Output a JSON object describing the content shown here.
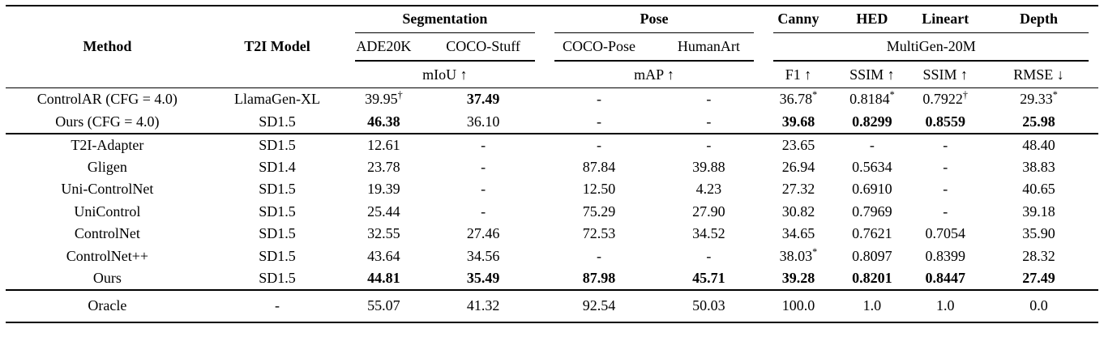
{
  "colors": {
    "text": "#000000",
    "background": "#ffffff",
    "rule": "#000000"
  },
  "table": {
    "header": {
      "method": "Method",
      "t2i_model": "T2I Model",
      "groups": [
        {
          "label": "Segmentation",
          "cols": [
            "ADE20K",
            "COCO-Stuff"
          ],
          "metric": "mIoU ↑"
        },
        {
          "label": "Pose",
          "cols": [
            "COCO-Pose",
            "HumanArt"
          ],
          "metric": "mAP ↑"
        }
      ],
      "multigen": {
        "dataset": "MultiGen-20M",
        "cols": [
          {
            "label": "Canny",
            "metric": "F1 ↑"
          },
          {
            "label": "HED",
            "metric": "SSIM ↑"
          },
          {
            "label": "Lineart",
            "metric": "SSIM ↑"
          },
          {
            "label": "Depth",
            "metric": "RMSE ↓"
          }
        ]
      }
    },
    "groups": [
      {
        "rows": [
          {
            "method": "ControlAR (CFG = 4.0)",
            "t2i": "LlamaGen-XL",
            "cells": [
              {
                "t": "39.95",
                "sup": "†"
              },
              {
                "t": "37.49",
                "b": true
              },
              "-",
              "-",
              {
                "t": "36.78",
                "sup": "*"
              },
              {
                "t": "0.8184",
                "sup": "*"
              },
              {
                "t": "0.7922",
                "sup": "†"
              },
              {
                "t": "29.33",
                "sup": "*"
              }
            ]
          },
          {
            "method": "Ours (CFG = 4.0)",
            "t2i": "SD1.5",
            "cells": [
              {
                "t": "46.38",
                "b": true
              },
              "36.10",
              "-",
              "-",
              {
                "t": "39.68",
                "b": true
              },
              {
                "t": "0.8299",
                "b": true
              },
              {
                "t": "0.8559",
                "b": true
              },
              {
                "t": "25.98",
                "b": true
              }
            ]
          }
        ]
      },
      {
        "rows": [
          {
            "method": "T2I-Adapter",
            "t2i": "SD1.5",
            "cells": [
              "12.61",
              "-",
              "-",
              "-",
              "23.65",
              "-",
              "-",
              "48.40"
            ]
          },
          {
            "method": "Gligen",
            "t2i": "SD1.4",
            "cells": [
              "23.78",
              "-",
              "87.84",
              "39.88",
              "26.94",
              "0.5634",
              "-",
              "38.83"
            ]
          },
          {
            "method": "Uni-ControlNet",
            "t2i": "SD1.5",
            "cells": [
              "19.39",
              "-",
              "12.50",
              "4.23",
              "27.32",
              "0.6910",
              "-",
              "40.65"
            ]
          },
          {
            "method": "UniControl",
            "t2i": "SD1.5",
            "cells": [
              "25.44",
              "-",
              "75.29",
              "27.90",
              "30.82",
              "0.7969",
              "-",
              "39.18"
            ]
          },
          {
            "method": "ControlNet",
            "t2i": "SD1.5",
            "cells": [
              "32.55",
              "27.46",
              "72.53",
              "34.52",
              "34.65",
              "0.7621",
              "0.7054",
              "35.90"
            ]
          },
          {
            "method": "ControlNet++",
            "t2i": "SD1.5",
            "cells": [
              "43.64",
              "34.56",
              "-",
              "-",
              {
                "t": "38.03",
                "sup": "*"
              },
              "0.8097",
              "0.8399",
              "28.32"
            ]
          },
          {
            "method": "Ours",
            "t2i": "SD1.5",
            "cells": [
              {
                "t": "44.81",
                "b": true
              },
              {
                "t": "35.49",
                "b": true
              },
              {
                "t": "87.98",
                "b": true
              },
              {
                "t": "45.71",
                "b": true
              },
              {
                "t": "39.28",
                "b": true
              },
              {
                "t": "0.8201",
                "b": true
              },
              {
                "t": "0.8447",
                "b": true
              },
              {
                "t": "27.49",
                "b": true
              }
            ]
          }
        ]
      },
      {
        "rows": [
          {
            "method": "Oracle",
            "t2i": "-",
            "cells": [
              "55.07",
              "41.32",
              "92.54",
              "50.03",
              "100.0",
              "1.0",
              "1.0",
              "0.0"
            ]
          }
        ]
      }
    ]
  }
}
